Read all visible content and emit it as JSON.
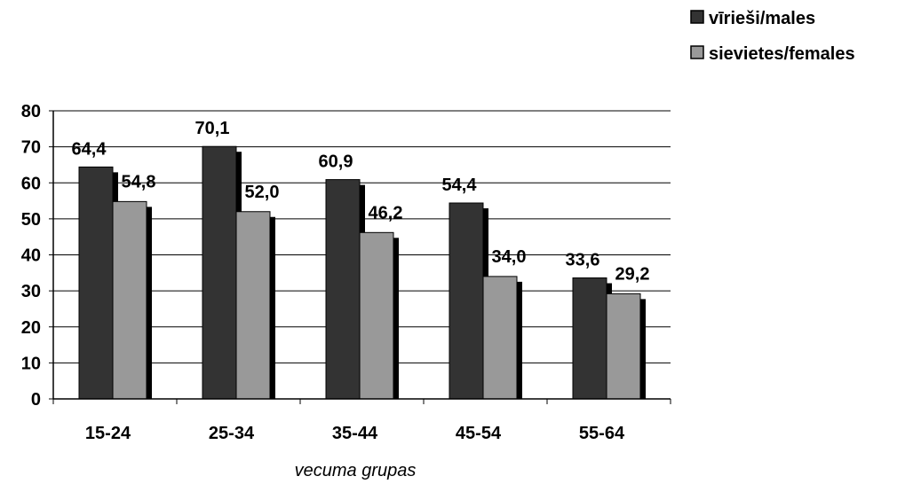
{
  "chart_data": {
    "type": "bar",
    "title": "",
    "xlabel": "vecuma grupas",
    "ylabel": "",
    "categories": [
      "15-24",
      "25-34",
      "35-44",
      "45-54",
      "55-64"
    ],
    "series": [
      {
        "name": "vīrieši/males",
        "values": [
          64.4,
          70.1,
          60.9,
          54.4,
          33.6
        ],
        "labels": [
          "64,4",
          "70,1",
          "60,9",
          "54,4",
          "33,6"
        ],
        "color": "#333333"
      },
      {
        "name": "sievietes/females",
        "values": [
          54.8,
          52.0,
          46.2,
          34.0,
          29.2
        ],
        "labels": [
          "54,8",
          "52,0",
          "46,2",
          "34,0",
          "29,2"
        ],
        "color": "#999999"
      }
    ],
    "ylim": [
      0,
      80
    ],
    "yticks": [
      0,
      10,
      20,
      30,
      40,
      50,
      60,
      70,
      80
    ],
    "grid": true,
    "legend": "top-right",
    "shadow_color": "#000000"
  }
}
